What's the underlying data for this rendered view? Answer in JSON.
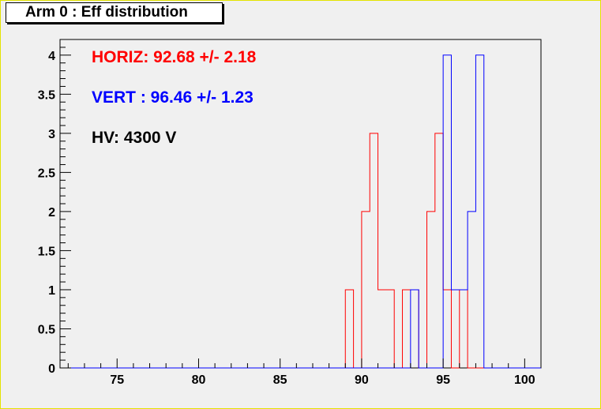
{
  "chart_data": {
    "type": "histogram",
    "title": "Arm 0 : Eff distribution",
    "xlabel": "",
    "ylabel": "",
    "xlim": [
      71.5,
      101
    ],
    "ylim": [
      0,
      4.2
    ],
    "x_ticks": [
      75,
      80,
      85,
      90,
      95,
      100
    ],
    "y_ticks": [
      "0",
      "0.5",
      "1",
      "1.5",
      "2",
      "2.5",
      "3",
      "3.5",
      "4"
    ],
    "bin_width": 0.5,
    "series": [
      {
        "name": "HORIZ",
        "color": "#ff0000",
        "bin_edges_start": 71.5,
        "counts": [
          0,
          0,
          0,
          0,
          0,
          0,
          0,
          0,
          0,
          0,
          0,
          0,
          0,
          0,
          0,
          0,
          0,
          0,
          0,
          0,
          0,
          0,
          0,
          0,
          0,
          0,
          0,
          0,
          0,
          0,
          0,
          0,
          0,
          0,
          0,
          1,
          0,
          2,
          3,
          1,
          1,
          0,
          1,
          1,
          0,
          2,
          3,
          1,
          0,
          1,
          0,
          0,
          0,
          0,
          0,
          0,
          0,
          0,
          0
        ]
      },
      {
        "name": "VERT",
        "color": "#0000ff",
        "bin_edges_start": 71.5,
        "counts": [
          0,
          0,
          0,
          0,
          0,
          0,
          0,
          0,
          0,
          0,
          0,
          0,
          0,
          0,
          0,
          0,
          0,
          0,
          0,
          0,
          0,
          0,
          0,
          0,
          0,
          0,
          0,
          0,
          0,
          0,
          0,
          0,
          0,
          0,
          0,
          0,
          0,
          0,
          0,
          0,
          0,
          0,
          0,
          1,
          0,
          0,
          0,
          4,
          1,
          1,
          2,
          4,
          0,
          0,
          0,
          0,
          0,
          0,
          0
        ]
      }
    ],
    "annotations": [
      {
        "text": "HORIZ: 92.68 +/- 2.18",
        "color": "#ff0000"
      },
      {
        "text": "VERT : 96.46 +/- 1.23",
        "color": "#0000ff"
      },
      {
        "text": "HV: 4300 V",
        "color": "#000000"
      }
    ]
  }
}
